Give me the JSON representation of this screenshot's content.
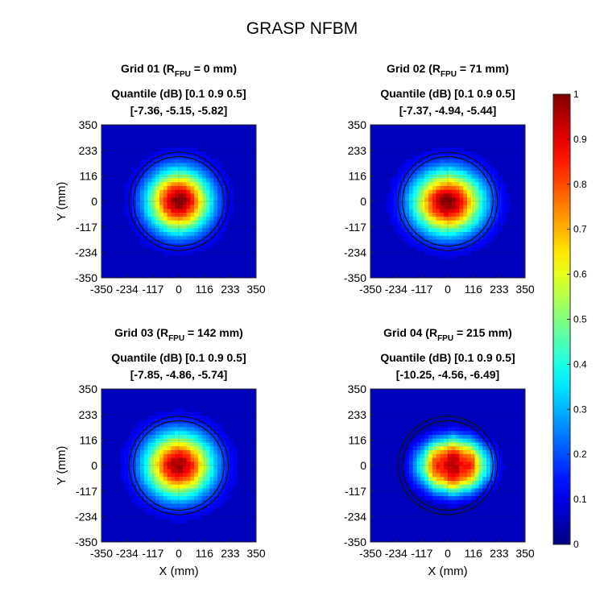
{
  "title": "GRASP NFBM",
  "colorbar": {
    "colormap": "jet",
    "range": [
      0,
      1
    ],
    "ticks": [
      "0",
      "0.1",
      "0.2",
      "0.3",
      "0.4",
      "0.5",
      "0.6",
      "0.7",
      "0.8",
      "0.9",
      "1"
    ]
  },
  "chart_data": [
    {
      "type": "heatmap",
      "title_prefix": "Grid 01 (R",
      "title_sub": "FPU",
      "title_suffix": " = 0 mm)",
      "quantile_title": "Quantile (dB) [0.1 0.9 0.5]",
      "quantile_values": "[-7.36, -5.15, -5.82]",
      "quantiles_db": [
        -7.36,
        -5.15,
        -5.82
      ],
      "r_fpu_mm": 0,
      "xlabel": "",
      "ylabel": "Y (mm)",
      "xticks": [
        "-350",
        "-234",
        "-117",
        "0",
        "116",
        "233",
        "350"
      ],
      "yticks": [
        "350",
        "233",
        "116",
        "0",
        "-117",
        "-234",
        "-350"
      ],
      "xlim": [
        -350,
        350
      ],
      "ylim": [
        -350,
        350
      ],
      "beam": {
        "center": [
          0,
          0
        ],
        "sigma": [
          97,
          97
        ],
        "peak": 1.0,
        "flat": false
      },
      "circles_radius_mm": [
        225,
        205
      ]
    },
    {
      "type": "heatmap",
      "title_prefix": "Grid 02 (R",
      "title_sub": "FPU",
      "title_suffix": " = 71 mm)",
      "quantile_title": "Quantile (dB) [0.1 0.9 0.5]",
      "quantile_values": "[-7.37, -4.94, -5.44]",
      "quantiles_db": [
        -7.37,
        -4.94,
        -5.44
      ],
      "r_fpu_mm": 71,
      "xlabel": "",
      "ylabel": "",
      "xticks": [
        "-350",
        "-234",
        "-117",
        "0",
        "116",
        "233",
        "350"
      ],
      "yticks": [
        "350",
        "233",
        "116",
        "0",
        "-117",
        "-234",
        "-350"
      ],
      "xlim": [
        -350,
        350
      ],
      "ylim": [
        -350,
        350
      ],
      "beam": {
        "center": [
          0,
          -5
        ],
        "sigma": [
          108,
          98
        ],
        "peak": 1.0,
        "flat": false
      },
      "circles_radius_mm": [
        225,
        205
      ]
    },
    {
      "type": "heatmap",
      "title_prefix": "Grid 03 (R",
      "title_sub": "FPU",
      "title_suffix": " = 142 mm)",
      "quantile_title": "Quantile (dB) [0.1 0.9 0.5]",
      "quantile_values": "[-7.85, -4.86, -5.74]",
      "quantiles_db": [
        -7.85,
        -4.86,
        -5.74
      ],
      "r_fpu_mm": 142,
      "xlabel": "X (mm)",
      "ylabel": "Y (mm)",
      "xticks": [
        "-350",
        "-234",
        "-117",
        "0",
        "116",
        "233",
        "350"
      ],
      "yticks": [
        "350",
        "233",
        "116",
        "0",
        "-117",
        "-234",
        "-350"
      ],
      "xlim": [
        -350,
        350
      ],
      "ylim": [
        -350,
        350
      ],
      "beam": {
        "center": [
          0,
          0
        ],
        "sigma": [
          105,
          100
        ],
        "peak": 0.97,
        "flat": false
      },
      "circles_radius_mm": [
        225,
        205
      ]
    },
    {
      "type": "heatmap",
      "title_prefix": "Grid 04 (R",
      "title_sub": "FPU",
      "title_suffix": " = 215 mm)",
      "quantile_title": "Quantile (dB) [0.1 0.9 0.5]",
      "quantile_values": "[-10.25, -4.56, -6.49]",
      "quantiles_db": [
        -10.25,
        -4.56,
        -6.49
      ],
      "r_fpu_mm": 215,
      "xlabel": "X (mm)",
      "ylabel": "",
      "xticks": [
        "-350",
        "-234",
        "-117",
        "0",
        "116",
        "233",
        "350"
      ],
      "yticks": [
        "350",
        "233",
        "116",
        "0",
        "-117",
        "-234",
        "-350"
      ],
      "xlim": [
        -350,
        350
      ],
      "ylim": [
        -350,
        350
      ],
      "beam": {
        "center": [
          25,
          0
        ],
        "sigma": [
          118,
          95
        ],
        "peak": 0.92,
        "flat": true
      },
      "circles_radius_mm": [
        225,
        205
      ]
    }
  ]
}
